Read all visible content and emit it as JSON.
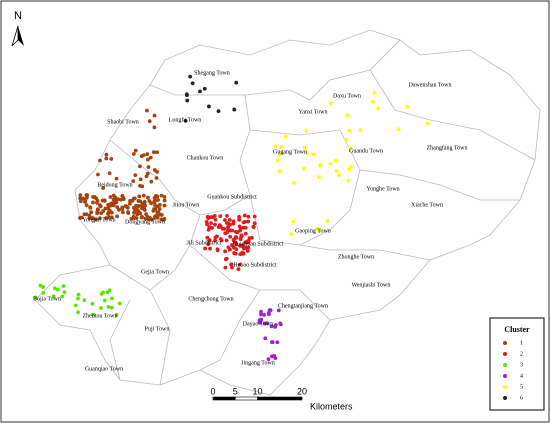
{
  "map": {
    "north": "N",
    "towns": [
      "Shegang Town",
      "Longfu Town",
      "Shaobi Town",
      "Chankou Town",
      "Daxu Town",
      "Dawenshan Town",
      "Yanxi Town",
      "Guandu Town",
      "Zhangfang Town",
      "Gugang Town",
      "Beidong Town",
      "Guankou Subdistrict",
      "Yonghe Town",
      "Xiache Town",
      "Yongan Town",
      "Dongyang Town",
      "Jitou Town",
      "Gaoping Town",
      "Jili Subdistrict",
      "Huichuan Subdistrict",
      "Hebao Subdistrict",
      "Zhonghe Town",
      "Gejia Town",
      "Wenjiashi Town",
      "Chengchong Town",
      "Bojia Town",
      "Zhentou Town",
      "Chengtanjiang Town",
      "Puji Town",
      "Dayao Town",
      "Guanqiao Town",
      "Jingang Town"
    ],
    "legend": {
      "title": "Cluster",
      "items": [
        {
          "label": "1",
          "color": "#a5430f"
        },
        {
          "label": "2",
          "color": "#e31a1c"
        },
        {
          "label": "3",
          "color": "#5ce600"
        },
        {
          "label": "4",
          "color": "#a020d0"
        },
        {
          "label": "5",
          "color": "#ffff00"
        },
        {
          "label": "6",
          "color": "#222222"
        }
      ]
    },
    "scale_bar": {
      "ticks": [
        0,
        5,
        10,
        20
      ],
      "unit": "Kilometers"
    }
  }
}
